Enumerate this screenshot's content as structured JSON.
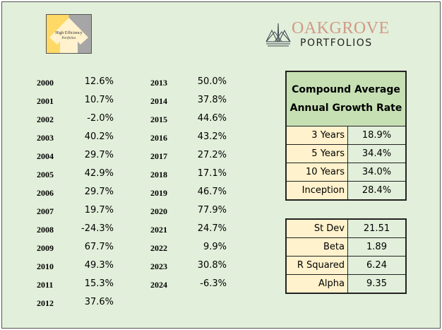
{
  "logos": {
    "high_efficiency": {
      "line1": "High Efficiency",
      "line2": "Portfolios"
    },
    "oakgrove": {
      "name": "OAKGROVE",
      "sub": "PORTFOLIOS"
    }
  },
  "annual_returns": [
    {
      "year": "2000",
      "value": "12.6%"
    },
    {
      "year": "2001",
      "value": "10.7%"
    },
    {
      "year": "2002",
      "value": "-2.0%"
    },
    {
      "year": "2003",
      "value": "40.2%"
    },
    {
      "year": "2004",
      "value": "29.7%"
    },
    {
      "year": "2005",
      "value": "42.9%"
    },
    {
      "year": "2006",
      "value": "29.7%"
    },
    {
      "year": "2007",
      "value": "19.7%"
    },
    {
      "year": "2008",
      "value": "-24.3%"
    },
    {
      "year": "2009",
      "value": "67.7%"
    },
    {
      "year": "2010",
      "value": "49.3%"
    },
    {
      "year": "2011",
      "value": "15.3%"
    },
    {
      "year": "2012",
      "value": "37.6%"
    },
    {
      "year": "2013",
      "value": "50.0%"
    },
    {
      "year": "2014",
      "value": "37.8%"
    },
    {
      "year": "2015",
      "value": "44.6%"
    },
    {
      "year": "2016",
      "value": "43.2%"
    },
    {
      "year": "2017",
      "value": "27.2%"
    },
    {
      "year": "2018",
      "value": "17.1%"
    },
    {
      "year": "2019",
      "value": "46.7%"
    },
    {
      "year": "2020",
      "value": "77.9%"
    },
    {
      "year": "2021",
      "value": "24.7%"
    },
    {
      "year": "2022",
      "value": "9.9%"
    },
    {
      "year": "2023",
      "value": "30.8%"
    },
    {
      "year": "2024",
      "value": "-6.3%"
    }
  ],
  "cagr": {
    "title_line1": "Compound Average",
    "title_line2": "Annual Growth Rate",
    "rows": [
      {
        "label": "3 Years",
        "value": "18.9%"
      },
      {
        "label": "5 Years",
        "value": "34.4%"
      },
      {
        "label": "10 Years",
        "value": "34.0%"
      },
      {
        "label": "Inception",
        "value": "28.4%"
      }
    ]
  },
  "stats": [
    {
      "label": "St Dev",
      "value": "21.51"
    },
    {
      "label": "Beta",
      "value": "1.89"
    },
    {
      "label": "R Squared",
      "value": "6.24"
    },
    {
      "label": "Alpha",
      "value": "9.35"
    }
  ],
  "colors": {
    "background": "#e2efda",
    "label_cell": "#fff2cc",
    "header_cell": "#c6e0b4",
    "oakgrove_brand": "#d09a86"
  }
}
